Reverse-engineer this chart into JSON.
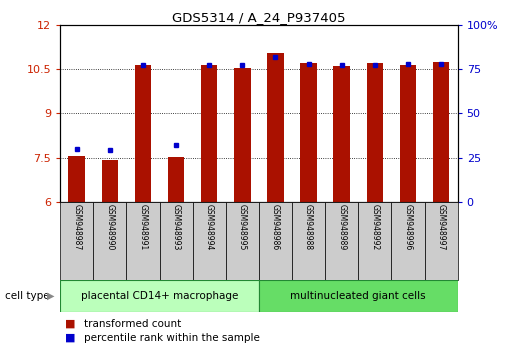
{
  "title": "GDS5314 / A_24_P937405",
  "samples": [
    "GSM948987",
    "GSM948990",
    "GSM948991",
    "GSM948993",
    "GSM948994",
    "GSM948995",
    "GSM948986",
    "GSM948988",
    "GSM948989",
    "GSM948992",
    "GSM948996",
    "GSM948997"
  ],
  "transformed_count": [
    7.55,
    7.42,
    10.65,
    7.52,
    10.62,
    10.53,
    11.05,
    10.72,
    10.6,
    10.72,
    10.62,
    10.75
  ],
  "percentile_rank": [
    30,
    29,
    77,
    32,
    77,
    77,
    82,
    78,
    77,
    77,
    78,
    78
  ],
  "group1_label": "placental CD14+ macrophage",
  "group2_label": "multinucleated giant cells",
  "group1_count": 6,
  "group2_count": 6,
  "ylim_left": [
    6,
    12
  ],
  "ylim_right": [
    0,
    100
  ],
  "yticks_left": [
    6,
    7.5,
    9,
    10.5,
    12
  ],
  "yticks_right": [
    0,
    25,
    50,
    75,
    100
  ],
  "bar_color": "#aa1100",
  "percentile_color": "#0000cc",
  "group1_bg": "#bbffbb",
  "group2_bg": "#66dd66",
  "sample_bg": "#cccccc",
  "legend_tc": "transformed count",
  "legend_pr": "percentile rank within the sample",
  "cell_type_label": "cell type",
  "left_ytick_color": "#cc2200",
  "right_ytick_color": "#0000cc",
  "grid_color": "#000000",
  "bar_width": 0.5
}
